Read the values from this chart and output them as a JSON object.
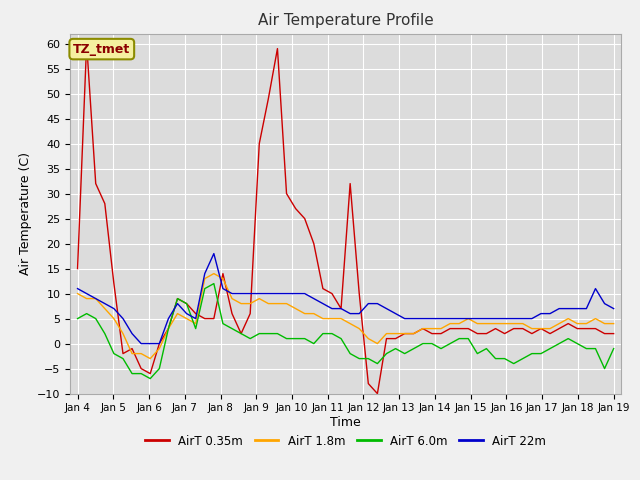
{
  "title": "Air Temperature Profile",
  "xlabel": "Time",
  "ylabel": "Air Temperature (C)",
  "ylim": [
    -10,
    62
  ],
  "yticks": [
    -10,
    -5,
    0,
    5,
    10,
    15,
    20,
    25,
    30,
    35,
    40,
    45,
    50,
    55,
    60
  ],
  "annotation": "TZ_tmet",
  "fig_bg": "#f0f0f0",
  "plot_bg": "#dcdcdc",
  "grid_color": "#ffffff",
  "x_labels": [
    "Jan 4",
    "Jan 5",
    "Jan 6",
    "Jan 7",
    "Jan 8",
    "Jan 9",
    "Jan 10",
    "Jan 11",
    "Jan 12",
    "Jan 13",
    "Jan 14",
    "Jan 15",
    "Jan 16",
    "Jan 17",
    "Jan 18",
    "Jan 19"
  ],
  "series": {
    "AirT 0.35m": {
      "color": "#cc0000",
      "data": [
        15,
        60,
        32,
        28,
        12,
        -2,
        -1,
        -5,
        -6,
        0,
        3,
        9,
        8,
        6,
        5,
        5,
        14,
        6,
        2,
        6,
        40,
        49,
        59,
        30,
        27,
        25,
        20,
        11,
        10,
        7,
        32,
        10,
        -8,
        -10,
        1,
        1,
        2,
        2,
        3,
        2,
        2,
        3,
        3,
        3,
        2,
        2,
        3,
        2,
        3,
        3,
        2,
        3,
        2,
        3,
        4,
        3,
        3,
        3,
        2,
        2
      ]
    },
    "AirT 1.8m": {
      "color": "#ffa500",
      "data": [
        10,
        9,
        9,
        7,
        5,
        2,
        -2,
        -2,
        -3,
        -1,
        3,
        6,
        5,
        4,
        13,
        14,
        13,
        9,
        8,
        8,
        9,
        8,
        8,
        8,
        7,
        6,
        6,
        5,
        5,
        5,
        4,
        3,
        1,
        0,
        2,
        2,
        2,
        2,
        3,
        3,
        3,
        4,
        4,
        5,
        4,
        4,
        4,
        4,
        4,
        4,
        3,
        3,
        3,
        4,
        5,
        4,
        4,
        5,
        4,
        4
      ]
    },
    "AirT 6.0m": {
      "color": "#00bb00",
      "data": [
        5,
        6,
        5,
        2,
        -2,
        -3,
        -6,
        -6,
        -7,
        -5,
        3,
        9,
        8,
        3,
        11,
        12,
        4,
        3,
        2,
        1,
        2,
        2,
        2,
        1,
        1,
        1,
        0,
        2,
        2,
        1,
        -2,
        -3,
        -3,
        -4,
        -2,
        -1,
        -2,
        -1,
        0,
        0,
        -1,
        0,
        1,
        1,
        -2,
        -1,
        -3,
        -3,
        -4,
        -3,
        -2,
        -2,
        -1,
        0,
        1,
        0,
        -1,
        -1,
        -5,
        -1
      ]
    },
    "AirT 22m": {
      "color": "#0000cc",
      "data": [
        11,
        10,
        9,
        8,
        7,
        5,
        2,
        0,
        0,
        0,
        5,
        8,
        6,
        5,
        14,
        18,
        11,
        10,
        10,
        10,
        10,
        10,
        10,
        10,
        10,
        10,
        9,
        8,
        7,
        7,
        6,
        6,
        8,
        8,
        7,
        6,
        5,
        5,
        5,
        5,
        5,
        5,
        5,
        5,
        5,
        5,
        5,
        5,
        5,
        5,
        5,
        6,
        6,
        7,
        7,
        7,
        7,
        11,
        8,
        7
      ]
    }
  },
  "legend_entries": [
    "AirT 0.35m",
    "AirT 1.8m",
    "AirT 6.0m",
    "AirT 22m"
  ]
}
